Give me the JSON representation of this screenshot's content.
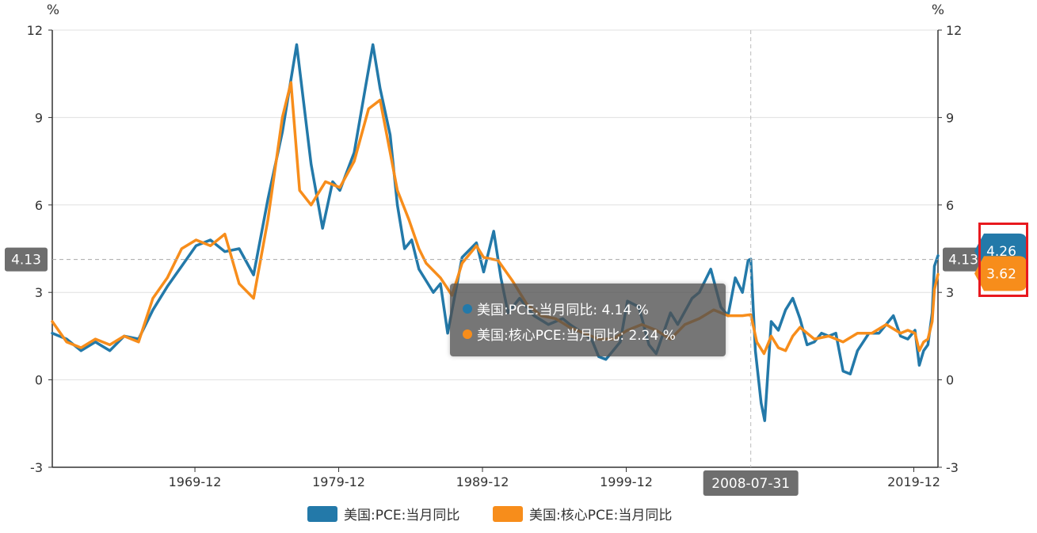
{
  "colors": {
    "pce": "#2379a9",
    "core": "#f78d1b",
    "grid": "#e0e0e0",
    "axis": "#333333",
    "highlight": "#e8191f"
  },
  "left_axis_unit": "%",
  "right_axis_unit": "%",
  "crosshair": {
    "y_value": 4.13,
    "y_label": "4.13",
    "x_label": "2008-07-31"
  },
  "end_labels": {
    "pce": "4.26",
    "core": "3.62"
  },
  "tooltip": {
    "pce": "美国:PCE:当月同比: 4.14 %",
    "core": "美国:核心PCE:当月同比: 2.24 %"
  },
  "legend": {
    "pce": "美国:PCE:当月同比",
    "core": "美国:核心PCE:当月同比"
  },
  "chart_data": {
    "type": "line",
    "x_range": [
      1960.0,
      2021.6
    ],
    "ylim": [
      -3,
      12
    ],
    "y_ticks": [
      -3,
      0,
      3,
      6,
      9,
      12
    ],
    "x_ticks": [
      {
        "value": 1969.92,
        "label": "1969-12"
      },
      {
        "value": 1979.92,
        "label": "1979-12"
      },
      {
        "value": 1989.92,
        "label": "1989-12"
      },
      {
        "value": 1999.92,
        "label": "1999-12"
      },
      {
        "value": 2019.92,
        "label": "2019-12"
      }
    ],
    "grid": true,
    "legend_position": "bottom",
    "series": [
      {
        "name": "美国:PCE:当月同比",
        "color": "#2379a9",
        "points": [
          [
            1960.0,
            1.6
          ],
          [
            1961.0,
            1.4
          ],
          [
            1962.0,
            1.0
          ],
          [
            1963.0,
            1.3
          ],
          [
            1964.0,
            1.0
          ],
          [
            1965.0,
            1.5
          ],
          [
            1966.0,
            1.4
          ],
          [
            1967.0,
            2.4
          ],
          [
            1968.0,
            3.2
          ],
          [
            1969.0,
            3.9
          ],
          [
            1970.0,
            4.6
          ],
          [
            1971.0,
            4.8
          ],
          [
            1972.0,
            4.4
          ],
          [
            1973.0,
            4.5
          ],
          [
            1974.0,
            3.6
          ],
          [
            1975.0,
            6.2
          ],
          [
            1976.0,
            8.5
          ],
          [
            1977.0,
            11.5
          ],
          [
            1978.0,
            7.4
          ],
          [
            1978.8,
            5.2
          ],
          [
            1979.5,
            6.8
          ],
          [
            1980.0,
            6.5
          ],
          [
            1981.0,
            7.8
          ],
          [
            1981.8,
            10.1
          ],
          [
            1982.3,
            11.5
          ],
          [
            1982.8,
            10.0
          ],
          [
            1983.5,
            8.4
          ],
          [
            1984.0,
            6.0
          ],
          [
            1984.5,
            4.5
          ],
          [
            1985.0,
            4.8
          ],
          [
            1985.5,
            3.8
          ],
          [
            1986.0,
            3.4
          ],
          [
            1986.5,
            3.0
          ],
          [
            1987.0,
            3.3
          ],
          [
            1987.5,
            1.6
          ],
          [
            1988.0,
            2.9
          ],
          [
            1988.5,
            4.2
          ],
          [
            1989.5,
            4.7
          ],
          [
            1990.0,
            3.7
          ],
          [
            1990.7,
            5.1
          ],
          [
            1991.2,
            3.5
          ],
          [
            1991.7,
            2.3
          ],
          [
            1992.5,
            2.8
          ],
          [
            1993.5,
            2.2
          ],
          [
            1994.5,
            1.9
          ],
          [
            1995.5,
            2.1
          ],
          [
            1996.0,
            1.9
          ],
          [
            1997.5,
            1.4
          ],
          [
            1998.0,
            0.8
          ],
          [
            1998.5,
            0.7
          ],
          [
            1999.5,
            1.3
          ],
          [
            2000.0,
            2.7
          ],
          [
            2000.8,
            2.5
          ],
          [
            2001.5,
            1.2
          ],
          [
            2002.0,
            0.9
          ],
          [
            2002.5,
            1.6
          ],
          [
            2003.0,
            2.3
          ],
          [
            2003.5,
            1.9
          ],
          [
            2004.5,
            2.8
          ],
          [
            2005.0,
            3.0
          ],
          [
            2005.8,
            3.8
          ],
          [
            2006.5,
            2.5
          ],
          [
            2007.0,
            2.2
          ],
          [
            2007.5,
            3.5
          ],
          [
            2008.0,
            3.0
          ],
          [
            2008.4,
            4.1
          ],
          [
            2008.58,
            4.14
          ],
          [
            2008.9,
            1.0
          ],
          [
            2009.3,
            -0.8
          ],
          [
            2009.55,
            -1.4
          ],
          [
            2010.0,
            2.0
          ],
          [
            2010.5,
            1.7
          ],
          [
            2011.0,
            2.4
          ],
          [
            2011.5,
            2.8
          ],
          [
            2012.0,
            2.1
          ],
          [
            2012.5,
            1.2
          ],
          [
            2013.0,
            1.3
          ],
          [
            2013.5,
            1.6
          ],
          [
            2014.0,
            1.5
          ],
          [
            2014.5,
            1.6
          ],
          [
            2015.0,
            0.3
          ],
          [
            2015.5,
            0.2
          ],
          [
            2016.0,
            1.0
          ],
          [
            2016.8,
            1.6
          ],
          [
            2017.5,
            1.6
          ],
          [
            2018.5,
            2.2
          ],
          [
            2019.0,
            1.5
          ],
          [
            2019.5,
            1.4
          ],
          [
            2020.0,
            1.7
          ],
          [
            2020.3,
            0.5
          ],
          [
            2020.6,
            1.0
          ],
          [
            2020.9,
            1.2
          ],
          [
            2021.2,
            2.3
          ],
          [
            2021.35,
            3.9
          ],
          [
            2021.6,
            4.26
          ]
        ]
      },
      {
        "name": "美国:核心PCE:当月同比",
        "color": "#f78d1b",
        "points": [
          [
            1960.0,
            2.0
          ],
          [
            1961.0,
            1.3
          ],
          [
            1962.0,
            1.1
          ],
          [
            1963.0,
            1.4
          ],
          [
            1964.0,
            1.2
          ],
          [
            1965.0,
            1.5
          ],
          [
            1966.0,
            1.3
          ],
          [
            1967.0,
            2.8
          ],
          [
            1968.0,
            3.5
          ],
          [
            1969.0,
            4.5
          ],
          [
            1970.0,
            4.8
          ],
          [
            1971.0,
            4.6
          ],
          [
            1972.0,
            5.0
          ],
          [
            1973.0,
            3.3
          ],
          [
            1974.0,
            2.8
          ],
          [
            1975.0,
            5.5
          ],
          [
            1976.0,
            9.0
          ],
          [
            1976.6,
            10.2
          ],
          [
            1977.2,
            6.5
          ],
          [
            1978.0,
            6.0
          ],
          [
            1979.0,
            6.8
          ],
          [
            1980.0,
            6.6
          ],
          [
            1981.0,
            7.5
          ],
          [
            1982.0,
            9.3
          ],
          [
            1982.8,
            9.6
          ],
          [
            1983.5,
            7.8
          ],
          [
            1984.0,
            6.5
          ],
          [
            1984.8,
            5.5
          ],
          [
            1985.5,
            4.5
          ],
          [
            1986.0,
            4.0
          ],
          [
            1987.0,
            3.5
          ],
          [
            1987.8,
            2.9
          ],
          [
            1988.5,
            4.0
          ],
          [
            1989.5,
            4.6
          ],
          [
            1990.0,
            4.2
          ],
          [
            1991.0,
            4.1
          ],
          [
            1992.0,
            3.4
          ],
          [
            1993.0,
            2.6
          ],
          [
            1994.0,
            2.2
          ],
          [
            1995.0,
            2.1
          ],
          [
            1996.0,
            1.8
          ],
          [
            1997.0,
            1.6
          ],
          [
            1998.0,
            1.4
          ],
          [
            1999.0,
            1.4
          ],
          [
            2000.0,
            1.7
          ],
          [
            2001.0,
            1.9
          ],
          [
            2002.0,
            1.7
          ],
          [
            2003.0,
            1.4
          ],
          [
            2004.0,
            1.9
          ],
          [
            2005.0,
            2.1
          ],
          [
            2006.0,
            2.4
          ],
          [
            2007.0,
            2.2
          ],
          [
            2008.0,
            2.2
          ],
          [
            2008.58,
            2.24
          ],
          [
            2009.0,
            1.3
          ],
          [
            2009.5,
            0.9
          ],
          [
            2010.0,
            1.5
          ],
          [
            2010.5,
            1.1
          ],
          [
            2011.0,
            1.0
          ],
          [
            2011.5,
            1.5
          ],
          [
            2012.0,
            1.8
          ],
          [
            2012.5,
            1.6
          ],
          [
            2013.0,
            1.4
          ],
          [
            2014.0,
            1.5
          ],
          [
            2015.0,
            1.3
          ],
          [
            2016.0,
            1.6
          ],
          [
            2017.0,
            1.6
          ],
          [
            2018.0,
            1.9
          ],
          [
            2019.0,
            1.6
          ],
          [
            2019.5,
            1.7
          ],
          [
            2020.0,
            1.6
          ],
          [
            2020.3,
            1.0
          ],
          [
            2020.6,
            1.3
          ],
          [
            2020.9,
            1.4
          ],
          [
            2021.2,
            2.0
          ],
          [
            2021.35,
            3.1
          ],
          [
            2021.6,
            3.62
          ]
        ]
      }
    ]
  }
}
